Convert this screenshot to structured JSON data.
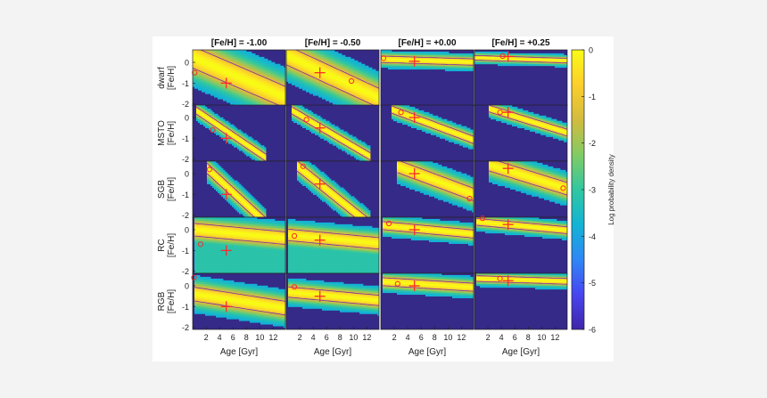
{
  "chart_data": {
    "type": "heatmap",
    "columns": [
      "[Fe/H] = -1.00",
      "[Fe/H] = -0.50",
      "[Fe/H] = +0.00",
      "[Fe/H] = +0.25"
    ],
    "rows": [
      {
        "name": "dwarf",
        "ylabel": "[Fe/H]"
      },
      {
        "name": "MSTO",
        "ylabel": "[Fe/H]"
      },
      {
        "name": "SGB",
        "ylabel": "[Fe/H]"
      },
      {
        "name": "RC",
        "ylabel": "[Fe/H]"
      },
      {
        "name": "RGB",
        "ylabel": "[Fe/H]"
      }
    ],
    "xlabel": "Age [Gyr]",
    "xlim": [
      0,
      13.8
    ],
    "xticks": [
      "2",
      "4",
      "6",
      "8",
      "10",
      "12"
    ],
    "xtick_values": [
      2,
      4,
      6,
      8,
      10,
      12
    ],
    "ylim": [
      -2.1,
      0.6
    ],
    "yticks": [
      "0",
      "-1",
      "-2"
    ],
    "ytick_values": [
      0,
      -1,
      -2
    ],
    "colorbar": {
      "label": "Log probability density",
      "ticks": [
        "0",
        "-1",
        "-2",
        "-3",
        "-4",
        "-5",
        "-6"
      ],
      "tick_values": [
        0,
        -1,
        -2,
        -3,
        -4,
        -5,
        -6
      ],
      "range": [
        -6,
        0
      ]
    },
    "colormap": [
      "#3e26a8",
      "#4845f0",
      "#2e87f6",
      "#12b4d4",
      "#30c7a0",
      "#82cb64",
      "#d2bb3e",
      "#fdce2d",
      "#f9fb15"
    ],
    "background_color": "#352a87",
    "marker_color": "#ff2a2a",
    "contour_color": "#7a2ca6",
    "panels": [
      [
        {
          "truth": [
            5.0,
            -1.0
          ],
          "best": [
            0.3,
            -0.5
          ],
          "band": {
            "x0": 0.0,
            "y0": 0.25,
            "slope": -0.14,
            "w": 0.95,
            "x1": 13.8,
            "floor": 0
          }
        },
        {
          "truth": [
            5.0,
            -0.5
          ],
          "best": [
            9.7,
            -0.9
          ],
          "band": {
            "x0": 0.0,
            "y0": 0.35,
            "slope": -0.15,
            "w": 0.85,
            "x1": 13.8,
            "floor": 0
          }
        },
        {
          "truth": [
            5.0,
            0.05
          ],
          "best": [
            0.4,
            0.2
          ],
          "band": {
            "x0": 0.0,
            "y0": 0.15,
            "slope": -0.01,
            "w": 0.28,
            "x1": 13.8,
            "floor": 0
          }
        },
        {
          "truth": [
            5.0,
            0.28
          ],
          "best": [
            4.2,
            0.3
          ],
          "band": {
            "x0": 0.0,
            "y0": 0.22,
            "slope": -0.01,
            "w": 0.2,
            "x1": 13.8,
            "floor": 0
          }
        }
      ],
      [
        {
          "truth": [
            5.0,
            -1.0
          ],
          "best": [
            3.0,
            -0.6
          ],
          "band": {
            "x0": 0.5,
            "y0": 0.35,
            "slope": -0.22,
            "w": 0.32,
            "x1": 11.0,
            "floor": 0
          }
        },
        {
          "truth": [
            5.0,
            -0.5
          ],
          "best": [
            3.0,
            -0.1
          ],
          "band": {
            "x0": 0.8,
            "y0": 0.35,
            "slope": -0.19,
            "w": 0.32,
            "x1": 12.5,
            "floor": 0
          }
        },
        {
          "truth": [
            5.0,
            0.0
          ],
          "best": [
            3.0,
            0.25
          ],
          "band": {
            "x0": 1.5,
            "y0": 0.4,
            "slope": -0.12,
            "w": 0.32,
            "x1": 13.8,
            "floor": 0
          }
        },
        {
          "truth": [
            5.0,
            0.25
          ],
          "best": [
            3.8,
            0.25
          ],
          "band": {
            "x0": 2.0,
            "y0": 0.45,
            "slope": -0.1,
            "w": 0.3,
            "x1": 13.8,
            "floor": 0
          }
        }
      ],
      [
        {
          "truth": [
            5.0,
            -1.0
          ],
          "best": [
            2.5,
            0.2
          ],
          "band": {
            "x0": 2.0,
            "y0": 0.3,
            "slope": -0.3,
            "w": 0.45,
            "x1": 11.0,
            "floor": 0
          }
        },
        {
          "truth": [
            5.0,
            -0.5
          ],
          "best": [
            2.5,
            0.35
          ],
          "band": {
            "x0": 1.5,
            "y0": 0.4,
            "slope": -0.26,
            "w": 0.45,
            "x1": 12.5,
            "floor": 0
          }
        },
        {
          "truth": [
            5.0,
            0.0
          ],
          "best": [
            13.2,
            -1.2
          ],
          "band": {
            "x0": 2.5,
            "y0": 0.35,
            "slope": -0.12,
            "w": 0.55,
            "x1": 13.8,
            "floor": 0
          }
        },
        {
          "truth": [
            5.0,
            0.25
          ],
          "best": [
            13.2,
            -0.7
          ],
          "band": {
            "x0": 2.0,
            "y0": 0.45,
            "slope": -0.1,
            "w": 0.55,
            "x1": 13.8,
            "floor": 0
          }
        }
      ],
      [
        {
          "truth": [
            5.0,
            -1.0
          ],
          "best": [
            1.2,
            -0.7
          ],
          "band": {
            "x0": 0.3,
            "y0": 0.0,
            "slope": -0.03,
            "w": 0.55,
            "x1": 13.8,
            "floor": 1
          }
        },
        {
          "truth": [
            5.0,
            -0.5
          ],
          "best": [
            1.2,
            -0.3
          ],
          "band": {
            "x0": 0.3,
            "y0": -0.25,
            "slope": -0.03,
            "w": 0.5,
            "x1": 13.8,
            "floor": 1
          }
        },
        {
          "truth": [
            5.0,
            0.0
          ],
          "best": [
            1.2,
            0.3
          ],
          "band": {
            "x0": 0.3,
            "y0": 0.2,
            "slope": -0.03,
            "w": 0.35,
            "x1": 13.8,
            "floor": 0
          }
        },
        {
          "truth": [
            5.0,
            0.25
          ],
          "best": [
            1.2,
            0.55
          ],
          "band": {
            "x0": 0.3,
            "y0": 0.38,
            "slope": -0.03,
            "w": 0.3,
            "x1": 13.8,
            "floor": 0
          }
        }
      ],
      [
        {
          "truth": [
            5.0,
            -1.0
          ],
          "best": [
            0.2,
            0.4
          ],
          "band": {
            "x0": 0.3,
            "y0": -0.4,
            "slope": -0.05,
            "w": 0.6,
            "x1": 13.8,
            "floor": 0
          }
        },
        {
          "truth": [
            5.0,
            -0.5
          ],
          "best": [
            1.2,
            -0.05
          ],
          "band": {
            "x0": 0.3,
            "y0": -0.3,
            "slope": -0.03,
            "w": 0.45,
            "x1": 13.8,
            "floor": 0
          }
        },
        {
          "truth": [
            5.0,
            0.0
          ],
          "best": [
            2.5,
            0.1
          ],
          "band": {
            "x0": 0.3,
            "y0": 0.2,
            "slope": -0.02,
            "w": 0.35,
            "x1": 13.8,
            "floor": 0
          }
        },
        {
          "truth": [
            5.0,
            0.25
          ],
          "best": [
            3.8,
            0.35
          ],
          "band": {
            "x0": 0.3,
            "y0": 0.35,
            "slope": -0.01,
            "w": 0.25,
            "x1": 13.8,
            "floor": 0
          }
        }
      ]
    ]
  }
}
